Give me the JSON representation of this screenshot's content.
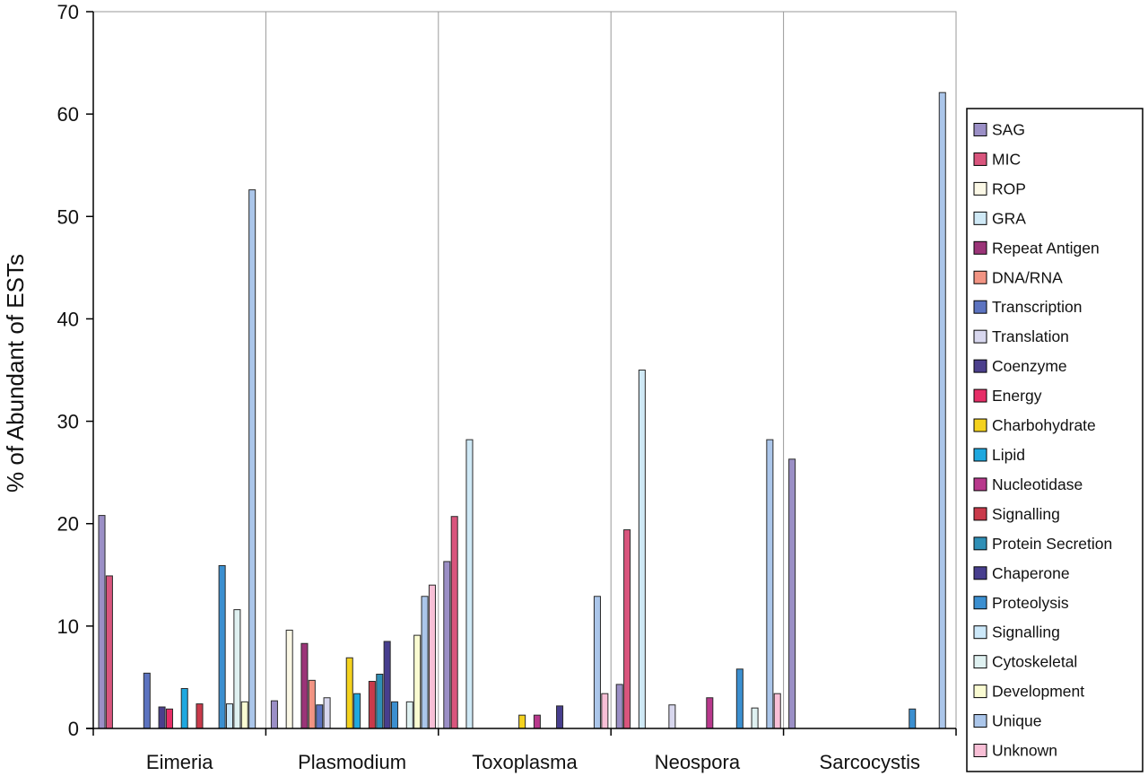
{
  "chart_data": {
    "type": "bar",
    "title": "",
    "xlabel": "",
    "ylabel": "% of Abundant of ESTs",
    "ylim": [
      0,
      70
    ],
    "yticks": [
      0,
      10,
      20,
      30,
      40,
      50,
      60,
      70
    ],
    "grid": false,
    "legend_position": "right",
    "categories": [
      "Eimeria",
      "Plasmodium",
      "Toxoplasma",
      "Neospora",
      "Sarcocystis"
    ],
    "series": [
      {
        "name": "SAG",
        "color": "#9b8fc6",
        "values": [
          20.8,
          2.7,
          16.3,
          4.3,
          26.3
        ]
      },
      {
        "name": "MIC",
        "color": "#d9557d",
        "values": [
          14.9,
          0,
          20.7,
          19.4,
          0
        ]
      },
      {
        "name": "ROP",
        "color": "#fbf8e6",
        "values": [
          0,
          9.6,
          0,
          0,
          0
        ]
      },
      {
        "name": "GRA",
        "color": "#cfe9f6",
        "values": [
          0,
          0,
          28.2,
          35.0,
          0
        ]
      },
      {
        "name": "Repeat Antigen",
        "color": "#9b3478",
        "values": [
          0,
          8.3,
          0,
          0,
          0
        ]
      },
      {
        "name": "DNA/RNA",
        "color": "#f29483",
        "values": [
          0,
          4.7,
          0,
          0,
          0
        ]
      },
      {
        "name": "Transcription",
        "color": "#5c73c0",
        "values": [
          5.4,
          2.3,
          0,
          0,
          0
        ]
      },
      {
        "name": "Translation",
        "color": "#d8d7ee",
        "values": [
          0,
          3.0,
          0,
          2.3,
          0
        ]
      },
      {
        "name": "Coenzyme",
        "color": "#4b3f8c",
        "values": [
          2.1,
          0,
          0,
          0,
          0
        ]
      },
      {
        "name": "Energy",
        "color": "#e62e67",
        "values": [
          1.9,
          0,
          0,
          0,
          0
        ]
      },
      {
        "name": "Charbohydrate",
        "color": "#f4d21e",
        "values": [
          0,
          6.9,
          1.3,
          0,
          0
        ]
      },
      {
        "name": "Lipid",
        "color": "#1fa8df",
        "values": [
          3.9,
          3.4,
          0,
          0,
          0
        ]
      },
      {
        "name": "Nucleotidase",
        "color": "#b8388c",
        "values": [
          0,
          0,
          1.3,
          3.0,
          0
        ]
      },
      {
        "name": "Signalling",
        "color": "#c93a4a",
        "values": [
          2.4,
          4.6,
          0,
          0,
          0
        ]
      },
      {
        "name": "Protein Secretion",
        "color": "#2f8fb6",
        "values": [
          0,
          5.3,
          0,
          0,
          0
        ]
      },
      {
        "name": "Chaperone",
        "color": "#473e8e",
        "values": [
          0,
          8.5,
          2.2,
          0,
          0
        ]
      },
      {
        "name": "Proteolysis",
        "color": "#3b8fd0",
        "values": [
          15.9,
          2.6,
          0,
          5.8,
          1.9
        ]
      },
      {
        "name": "Signalling",
        "color": "#cce8f9",
        "values": [
          2.4,
          0,
          0,
          0,
          0
        ]
      },
      {
        "name": "Cytoskeletal",
        "color": "#dff1f1",
        "values": [
          11.6,
          2.6,
          0,
          2.0,
          0
        ]
      },
      {
        "name": "Development",
        "color": "#fafbd2",
        "values": [
          2.6,
          9.1,
          0,
          0,
          0
        ]
      },
      {
        "name": "Unique",
        "color": "#abc6ea",
        "values": [
          52.6,
          12.9,
          12.9,
          28.2,
          62.1
        ]
      },
      {
        "name": "Unknown",
        "color": "#f8bfd6",
        "values": [
          0,
          14.0,
          3.4,
          3.4,
          0
        ]
      }
    ]
  }
}
